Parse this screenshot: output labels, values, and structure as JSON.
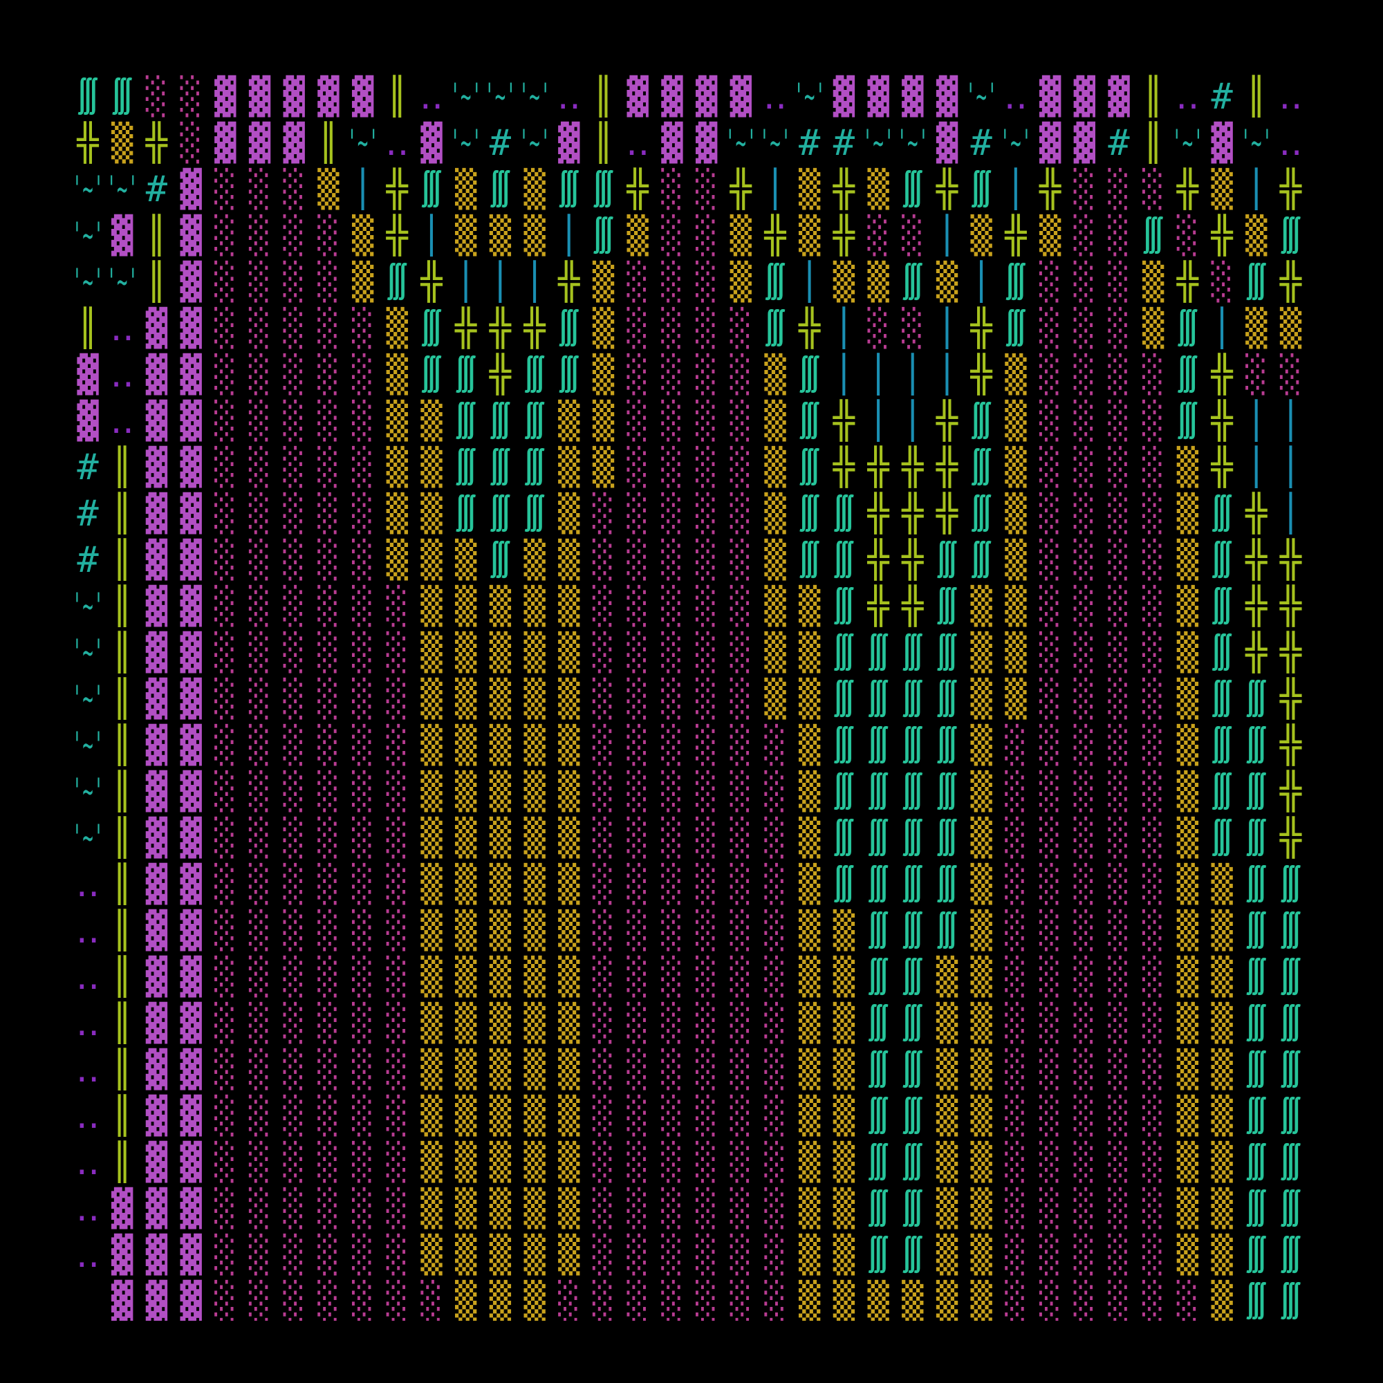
{
  "screen": {
    "colors": {
      "▓": "#b24fc4",
      "░": "#b83c92",
      "▒": "#c9a21c",
      "╬": "#a6c21e",
      "║": "#a6c21e",
      "∭": "#26c49a",
      "│": "#1a8fb3",
      "'~'": "#22b0a0",
      "#": "#22b0a0",
      "‥": "#8a2cc0"
    },
    "rows": [
      [
        "∭",
        "∭",
        "░",
        "░",
        "▓",
        "▓",
        "▓",
        "▓",
        "▓",
        "║",
        "‥",
        "'~'",
        "'~'",
        "'~'",
        "‥",
        "║",
        "▓",
        "▓",
        "▓",
        "▓",
        "‥",
        "'~'",
        "▓",
        "▓",
        "▓",
        "▓",
        "'~'",
        "‥",
        "▓",
        "▓",
        "▓",
        "║",
        "‥",
        "#",
        "║",
        "‥"
      ],
      [
        "╬",
        "▒",
        "╬",
        "░",
        "▓",
        "▓",
        "▓",
        "║",
        "'~'",
        "‥",
        "▓",
        "'~'",
        "#",
        "'~'",
        "▓",
        "║",
        "‥",
        "▓",
        "▓",
        "'~'",
        "'~'",
        "#",
        "#",
        "'~'",
        "'~'",
        "▓",
        "#",
        "'~'",
        "▓",
        "▓",
        "#",
        "║",
        "'~'",
        "▓",
        "'~'",
        "‥"
      ],
      [
        "'~'",
        "'~'",
        "#",
        "▓",
        "░",
        "░",
        "░",
        "▒",
        "│",
        "╬",
        "∭",
        "▒",
        "∭",
        "▒",
        "∭",
        "∭",
        "╬",
        "░",
        "░",
        "╬",
        "│",
        "▒",
        "╬",
        "▒",
        "∭",
        "╬",
        "∭",
        "│",
        "╬",
        "░",
        "░",
        "░",
        "╬",
        "▒",
        "│",
        "╬"
      ],
      [
        "'~'",
        "▓",
        "║",
        "▓",
        "░",
        "░",
        "░",
        "░",
        "▒",
        "╬",
        "│",
        "▒",
        "▒",
        "▒",
        "│",
        "∭",
        "▒",
        "░",
        "░",
        "▒",
        "╬",
        "▒",
        "╬",
        "░",
        "░",
        "│",
        "▒",
        "╬",
        "▒",
        "░",
        "░",
        "∭",
        "░",
        "╬",
        "▒",
        "∭"
      ],
      [
        "'~'",
        "'~'",
        "║",
        "▓",
        "░",
        "░",
        "░",
        "░",
        "▒",
        "∭",
        "╬",
        "│",
        "│",
        "│",
        "╬",
        "▒",
        "░",
        "░",
        "░",
        "▒",
        "∭",
        "│",
        "▒",
        "▒",
        "∭",
        "▒",
        "│",
        "∭",
        "░",
        "░",
        "░",
        "▒",
        "╬",
        "░",
        "∭",
        "╬"
      ],
      [
        "║",
        "‥",
        "▓",
        "▓",
        "░",
        "░",
        "░",
        "░",
        "░",
        "▒",
        "∭",
        "╬",
        "╬",
        "╬",
        "∭",
        "▒",
        "░",
        "░",
        "░",
        "░",
        "∭",
        "╬",
        "│",
        "░",
        "░",
        "│",
        "╬",
        "∭",
        "░",
        "░",
        "░",
        "▒",
        "∭",
        "│",
        "▒",
        "▒"
      ],
      [
        "▓",
        "‥",
        "▓",
        "▓",
        "░",
        "░",
        "░",
        "░",
        "░",
        "▒",
        "∭",
        "∭",
        "╬",
        "∭",
        "∭",
        "▒",
        "░",
        "░",
        "░",
        "░",
        "▒",
        "∭",
        "│",
        "│",
        "│",
        "│",
        "╬",
        "▒",
        "░",
        "░",
        "░",
        "░",
        "∭",
        "╬",
        "░",
        "░"
      ],
      [
        "▓",
        "‥",
        "▓",
        "▓",
        "░",
        "░",
        "░",
        "░",
        "░",
        "▒",
        "▒",
        "∭",
        "∭",
        "∭",
        "▒",
        "▒",
        "░",
        "░",
        "░",
        "░",
        "▒",
        "∭",
        "╬",
        "│",
        "│",
        "╬",
        "∭",
        "▒",
        "░",
        "░",
        "░",
        "░",
        "∭",
        "╬",
        "│",
        "│"
      ],
      [
        "#",
        "║",
        "▓",
        "▓",
        "░",
        "░",
        "░",
        "░",
        "░",
        "▒",
        "▒",
        "∭",
        "∭",
        "∭",
        "▒",
        "▒",
        "░",
        "░",
        "░",
        "░",
        "▒",
        "∭",
        "╬",
        "╬",
        "╬",
        "╬",
        "∭",
        "▒",
        "░",
        "░",
        "░",
        "░",
        "▒",
        "╬",
        "│",
        "│"
      ],
      [
        "#",
        "║",
        "▓",
        "▓",
        "░",
        "░",
        "░",
        "░",
        "░",
        "▒",
        "▒",
        "∭",
        "∭",
        "∭",
        "▒",
        "░",
        "░",
        "░",
        "░",
        "░",
        "▒",
        "∭",
        "∭",
        "╬",
        "╬",
        "╬",
        "∭",
        "▒",
        "░",
        "░",
        "░",
        "░",
        "▒",
        "∭",
        "╬",
        "│"
      ],
      [
        "#",
        "║",
        "▓",
        "▓",
        "░",
        "░",
        "░",
        "░",
        "░",
        "▒",
        "▒",
        "▒",
        "∭",
        "▒",
        "▒",
        "░",
        "░",
        "░",
        "░",
        "░",
        "▒",
        "∭",
        "∭",
        "╬",
        "╬",
        "∭",
        "∭",
        "▒",
        "░",
        "░",
        "░",
        "░",
        "▒",
        "∭",
        "╬",
        "╬"
      ],
      [
        "'~'",
        "║",
        "▓",
        "▓",
        "░",
        "░",
        "░",
        "░",
        "░",
        "░",
        "▒",
        "▒",
        "▒",
        "▒",
        "▒",
        "░",
        "░",
        "░",
        "░",
        "░",
        "▒",
        "▒",
        "∭",
        "╬",
        "╬",
        "∭",
        "▒",
        "▒",
        "░",
        "░",
        "░",
        "░",
        "▒",
        "∭",
        "╬",
        "╬"
      ],
      [
        "'~'",
        "║",
        "▓",
        "▓",
        "░",
        "░",
        "░",
        "░",
        "░",
        "░",
        "▒",
        "▒",
        "▒",
        "▒",
        "▒",
        "░",
        "░",
        "░",
        "░",
        "░",
        "▒",
        "▒",
        "∭",
        "∭",
        "∭",
        "∭",
        "▒",
        "▒",
        "░",
        "░",
        "░",
        "░",
        "▒",
        "∭",
        "╬",
        "╬"
      ],
      [
        "'~'",
        "║",
        "▓",
        "▓",
        "░",
        "░",
        "░",
        "░",
        "░",
        "░",
        "▒",
        "▒",
        "▒",
        "▒",
        "▒",
        "░",
        "░",
        "░",
        "░",
        "░",
        "▒",
        "▒",
        "∭",
        "∭",
        "∭",
        "∭",
        "▒",
        "▒",
        "░",
        "░",
        "░",
        "░",
        "▒",
        "∭",
        "∭",
        "╬"
      ],
      [
        "'~'",
        "║",
        "▓",
        "▓",
        "░",
        "░",
        "░",
        "░",
        "░",
        "░",
        "▒",
        "▒",
        "▒",
        "▒",
        "▒",
        "░",
        "░",
        "░",
        "░",
        "░",
        "░",
        "▒",
        "∭",
        "∭",
        "∭",
        "∭",
        "▒",
        "░",
        "░",
        "░",
        "░",
        "░",
        "▒",
        "∭",
        "∭",
        "╬"
      ],
      [
        "'~'",
        "║",
        "▓",
        "▓",
        "░",
        "░",
        "░",
        "░",
        "░",
        "░",
        "▒",
        "▒",
        "▒",
        "▒",
        "▒",
        "░",
        "░",
        "░",
        "░",
        "░",
        "░",
        "▒",
        "∭",
        "∭",
        "∭",
        "∭",
        "▒",
        "░",
        "░",
        "░",
        "░",
        "░",
        "▒",
        "∭",
        "∭",
        "╬"
      ],
      [
        "'~'",
        "║",
        "▓",
        "▓",
        "░",
        "░",
        "░",
        "░",
        "░",
        "░",
        "▒",
        "▒",
        "▒",
        "▒",
        "▒",
        "░",
        "░",
        "░",
        "░",
        "░",
        "░",
        "▒",
        "∭",
        "∭",
        "∭",
        "∭",
        "▒",
        "░",
        "░",
        "░",
        "░",
        "░",
        "▒",
        "∭",
        "∭",
        "╬"
      ],
      [
        "‥",
        "║",
        "▓",
        "▓",
        "░",
        "░",
        "░",
        "░",
        "░",
        "░",
        "▒",
        "▒",
        "▒",
        "▒",
        "▒",
        "░",
        "░",
        "░",
        "░",
        "░",
        "░",
        "▒",
        "∭",
        "∭",
        "∭",
        "∭",
        "▒",
        "░",
        "░",
        "░",
        "░",
        "░",
        "▒",
        "▒",
        "∭",
        "∭"
      ],
      [
        "‥",
        "║",
        "▓",
        "▓",
        "░",
        "░",
        "░",
        "░",
        "░",
        "░",
        "▒",
        "▒",
        "▒",
        "▒",
        "▒",
        "░",
        "░",
        "░",
        "░",
        "░",
        "░",
        "▒",
        "▒",
        "∭",
        "∭",
        "∭",
        "▒",
        "░",
        "░",
        "░",
        "░",
        "░",
        "▒",
        "▒",
        "∭",
        "∭"
      ],
      [
        "‥",
        "║",
        "▓",
        "▓",
        "░",
        "░",
        "░",
        "░",
        "░",
        "░",
        "▒",
        "▒",
        "▒",
        "▒",
        "▒",
        "░",
        "░",
        "░",
        "░",
        "░",
        "░",
        "▒",
        "▒",
        "∭",
        "∭",
        "▒",
        "▒",
        "░",
        "░",
        "░",
        "░",
        "░",
        "▒",
        "▒",
        "∭",
        "∭"
      ],
      [
        "‥",
        "║",
        "▓",
        "▓",
        "░",
        "░",
        "░",
        "░",
        "░",
        "░",
        "▒",
        "▒",
        "▒",
        "▒",
        "▒",
        "░",
        "░",
        "░",
        "░",
        "░",
        "░",
        "▒",
        "▒",
        "∭",
        "∭",
        "▒",
        "▒",
        "░",
        "░",
        "░",
        "░",
        "░",
        "▒",
        "▒",
        "∭",
        "∭"
      ],
      [
        "‥",
        "║",
        "▓",
        "▓",
        "░",
        "░",
        "░",
        "░",
        "░",
        "░",
        "▒",
        "▒",
        "▒",
        "▒",
        "▒",
        "░",
        "░",
        "░",
        "░",
        "░",
        "░",
        "▒",
        "▒",
        "∭",
        "∭",
        "▒",
        "▒",
        "░",
        "░",
        "░",
        "░",
        "░",
        "▒",
        "▒",
        "∭",
        "∭"
      ],
      [
        "‥",
        "║",
        "▓",
        "▓",
        "░",
        "░",
        "░",
        "░",
        "░",
        "░",
        "▒",
        "▒",
        "▒",
        "▒",
        "▒",
        "░",
        "░",
        "░",
        "░",
        "░",
        "░",
        "▒",
        "▒",
        "∭",
        "∭",
        "▒",
        "▒",
        "░",
        "░",
        "░",
        "░",
        "░",
        "▒",
        "▒",
        "∭",
        "∭"
      ],
      [
        "‥",
        "║",
        "▓",
        "▓",
        "░",
        "░",
        "░",
        "░",
        "░",
        "░",
        "▒",
        "▒",
        "▒",
        "▒",
        "▒",
        "░",
        "░",
        "░",
        "░",
        "░",
        "░",
        "▒",
        "▒",
        "∭",
        "∭",
        "▒",
        "▒",
        "░",
        "░",
        "░",
        "░",
        "░",
        "▒",
        "▒",
        "∭",
        "∭"
      ],
      [
        "‥",
        "▓",
        "▓",
        "▓",
        "░",
        "░",
        "░",
        "░",
        "░",
        "░",
        "▒",
        "▒",
        "▒",
        "▒",
        "▒",
        "░",
        "░",
        "░",
        "░",
        "░",
        "░",
        "▒",
        "▒",
        "∭",
        "∭",
        "▒",
        "▒",
        "░",
        "░",
        "░",
        "░",
        "░",
        "▒",
        "▒",
        "∭",
        "∭"
      ],
      [
        "‥",
        "▓",
        "▓",
        "▓",
        "░",
        "░",
        "░",
        "░",
        "░",
        "░",
        "▒",
        "▒",
        "▒",
        "▒",
        "▒",
        "░",
        "░",
        "░",
        "░",
        "░",
        "░",
        "▒",
        "▒",
        "∭",
        "∭",
        "▒",
        "▒",
        "░",
        "░",
        "░",
        "░",
        "░",
        "▒",
        "▒",
        "∭",
        "∭"
      ],
      [
        null,
        "▓",
        "▓",
        "▓",
        "░",
        "░",
        "░",
        "░",
        "░",
        "░",
        "░",
        "▒",
        "▒",
        "▒",
        "░",
        "░",
        "░",
        "░",
        "░",
        "░",
        "░",
        "▒",
        "▒",
        "▒",
        "▒",
        "▒",
        "▒",
        "░",
        "░",
        "░",
        "░",
        "░",
        "░",
        "▒",
        "∭",
        "∭"
      ]
    ]
  }
}
